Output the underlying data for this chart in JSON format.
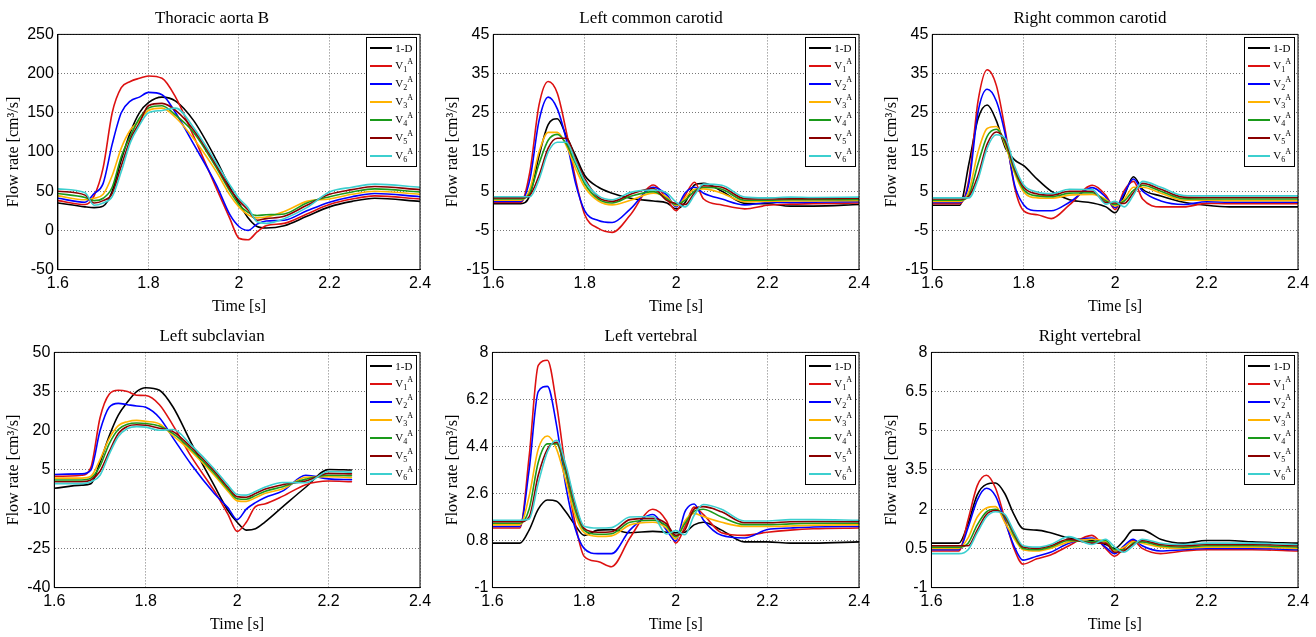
{
  "chart_data": [
    {
      "type": "line",
      "title": "Thoracic aorta B",
      "xlabel": "Time [s]",
      "ylabel": "Flow rate [cm³/s]",
      "xlim": [
        1.6,
        2.4
      ],
      "xticks": [
        1.6,
        1.8,
        2,
        2.2,
        2.4
      ],
      "ylim": [
        -50,
        250
      ],
      "yticks": [
        -50,
        0,
        50,
        100,
        150,
        200,
        250
      ],
      "grid": true,
      "legend": "top right",
      "x": [
        1.6,
        1.66,
        1.68,
        1.7,
        1.72,
        1.74,
        1.76,
        1.78,
        1.8,
        1.83,
        1.86,
        1.9,
        1.95,
        1.98,
        2.0,
        2.02,
        2.04,
        2.06,
        2.1,
        2.15,
        2.2,
        2.25,
        2.3,
        2.4
      ],
      "series": [
        {
          "name": "1-D",
          "color": "#000000",
          "values": [
            35,
            30,
            29,
            31,
            50,
            90,
            125,
            150,
            163,
            170,
            165,
            140,
            90,
            55,
            35,
            16,
            5,
            3,
            6,
            18,
            30,
            37,
            41,
            37
          ]
        },
        {
          "name": "V$_{1}$$^{A}$",
          "color": "#dd1111",
          "values": [
            38,
            33,
            44,
            80,
            150,
            182,
            190,
            194,
            197,
            194,
            170,
            120,
            54,
            15,
            -10,
            -12,
            -2,
            6,
            9,
            21,
            33,
            40,
            44,
            40
          ]
        },
        {
          "name": "V$_{2}$$^{A}$",
          "color": "#0000ff",
          "values": [
            41,
            36,
            47,
            60,
            110,
            150,
            165,
            170,
            176,
            173,
            150,
            110,
            58,
            20,
            5,
            0,
            8,
            12,
            13,
            25,
            36,
            43,
            47,
            43
          ]
        },
        {
          "name": "V$_{3}$$^{A}$",
          "color": "#ffb300",
          "values": [
            44,
            39,
            41,
            46,
            70,
            105,
            128,
            140,
            153,
            156,
            144,
            117,
            75,
            45,
            30,
            20,
            16,
            17,
            24,
            37,
            40,
            46,
            50,
            46
          ]
        },
        {
          "name": "V$_{4}$$^{A}$",
          "color": "#1a9a1a",
          "values": [
            47,
            42,
            38,
            41,
            55,
            94,
            120,
            143,
            156,
            159,
            147,
            125,
            80,
            50,
            33,
            23,
            19,
            20,
            21,
            35,
            43,
            49,
            53,
            49
          ]
        },
        {
          "name": "V$_{5}$$^{A}$",
          "color": "#8b0000",
          "values": [
            50,
            45,
            35,
            38,
            47,
            82,
            116,
            137,
            159,
            162,
            153,
            128,
            83,
            53,
            38,
            26,
            13,
            15,
            18,
            32,
            46,
            52,
            56,
            52
          ]
        },
        {
          "name": "V$_{6}$$^{A}$",
          "color": "#3ccfcf",
          "values": [
            53,
            48,
            32,
            35,
            43,
            75,
            112,
            134,
            150,
            153,
            156,
            131,
            86,
            58,
            41,
            29,
            11,
            9,
            15,
            29,
            49,
            55,
            59,
            55
          ]
        }
      ]
    },
    {
      "type": "line",
      "title": "Left common carotid",
      "xlabel": "Time [s]",
      "ylabel": "Flow rate [cm³/s]",
      "xlim": [
        1.6,
        2.4
      ],
      "xticks": [
        1.6,
        1.8,
        2,
        2.2,
        2.4
      ],
      "ylim": [
        -15,
        45
      ],
      "yticks": [
        -15,
        -5,
        5,
        15,
        25,
        35,
        45
      ],
      "grid": true,
      "legend": "top right",
      "x": [
        1.6,
        1.66,
        1.68,
        1.7,
        1.72,
        1.74,
        1.76,
        1.78,
        1.8,
        1.83,
        1.86,
        1.9,
        1.95,
        1.98,
        2.0,
        2.02,
        2.04,
        2.06,
        2.1,
        2.15,
        2.2,
        2.25,
        2.3,
        2.4
      ],
      "series": [
        {
          "name": "1-D",
          "color": "#000000",
          "values": [
            1.8,
            1.8,
            4,
            14,
            22,
            23.5,
            19,
            14,
            9,
            6,
            4.5,
            3.2,
            2.5,
            2,
            0.5,
            2.2,
            6.6,
            7,
            5,
            1.9,
            1.8,
            1.2,
            1.2,
            1.6
          ]
        },
        {
          "name": "V$_{1}$$^{A}$",
          "color": "#dd1111",
          "values": [
            2.1,
            2.1,
            10,
            27,
            33,
            30,
            20,
            8,
            -1,
            -4.5,
            -5.5,
            -1,
            6.6,
            3,
            0,
            4,
            7.3,
            3,
            1.5,
            0.5,
            1.4,
            1.7,
            1.8,
            2.0
          ]
        },
        {
          "name": "V$_{2}$$^{A}$",
          "color": "#0000ff",
          "values": [
            2.4,
            2.4,
            8,
            23,
            29,
            26,
            18,
            7,
            0,
            -2.5,
            -3,
            0.5,
            6.0,
            4.0,
            1,
            4.6,
            6.0,
            4.5,
            3,
            1.5,
            2.1,
            2.1,
            2.2,
            2.3
          ]
        },
        {
          "name": "V$_{3}$$^{A}$",
          "color": "#ffb300",
          "values": [
            2.7,
            2.7,
            5.5,
            15,
            20,
            20,
            16.5,
            10.8,
            6,
            2.5,
            1.5,
            2.7,
            4.5,
            3.5,
            1.3,
            3.3,
            5.5,
            5.6,
            4.5,
            2.3,
            2.4,
            2.5,
            2.5,
            2.6
          ]
        },
        {
          "name": "V$_{4}$$^{A}$",
          "color": "#1a9a1a",
          "values": [
            3.0,
            3.0,
            4.6,
            12,
            18,
            19.5,
            17,
            12,
            6.9,
            3,
            2,
            3.7,
            4.9,
            3.0,
            1.6,
            2.7,
            5,
            6.0,
            5.5,
            2.7,
            2.7,
            2.8,
            2.8,
            2.9
          ]
        },
        {
          "name": "V$_{5}$$^{A}$",
          "color": "#8b0000",
          "values": [
            3.3,
            3.3,
            4.0,
            9,
            16,
            18.5,
            18.5,
            13.2,
            8.2,
            3.4,
            2.4,
            4.2,
            5.7,
            2.6,
            1.9,
            1.6,
            4.5,
            6.4,
            6,
            3.1,
            3.0,
            3.1,
            3.1,
            3.2
          ]
        },
        {
          "name": "V$_{6}$$^{A}$",
          "color": "#3ccfcf",
          "values": [
            3.6,
            3.6,
            3.6,
            8,
            15,
            17.5,
            17.5,
            12.6,
            7.6,
            3.8,
            2.8,
            4.7,
            5.3,
            4.5,
            2.2,
            1.0,
            4,
            6.8,
            6.5,
            3.5,
            3.3,
            3.5,
            3.4,
            3.5
          ]
        }
      ]
    },
    {
      "type": "line",
      "title": "Right common carotid",
      "xlabel": "Time [s]",
      "ylabel": "Flow rate [cm³/s]",
      "xlim": [
        1.6,
        2.4
      ],
      "xticks": [
        1.6,
        1.8,
        2,
        2.2,
        2.4
      ],
      "ylim": [
        -15,
        45
      ],
      "yticks": [
        -15,
        -5,
        5,
        15,
        25,
        35,
        45
      ],
      "grid": true,
      "legend": "top right",
      "x": [
        1.6,
        1.66,
        1.68,
        1.7,
        1.72,
        1.74,
        1.76,
        1.78,
        1.8,
        1.83,
        1.86,
        1.9,
        1.95,
        1.98,
        2.0,
        2.02,
        2.04,
        2.06,
        2.1,
        2.15,
        2.2,
        2.25,
        2.3,
        2.4
      ],
      "series": [
        {
          "name": "1-D",
          "color": "#000000",
          "values": [
            1.4,
            1.4,
            12,
            23.5,
            27,
            23,
            16,
            13,
            11.5,
            8,
            5.0,
            2.8,
            2,
            1,
            -0.5,
            4,
            8.7,
            5.5,
            3.8,
            2.2,
            1.4,
            1.0,
            1.0,
            1.0
          ]
        },
        {
          "name": "V$_{1}$$^{A}$",
          "color": "#dd1111",
          "values": [
            1.8,
            1.8,
            8,
            28,
            36,
            32,
            20.2,
            6,
            0,
            -1,
            -2,
            1.5,
            6.5,
            3.9,
            0.3,
            5.2,
            7.5,
            3,
            1,
            1.0,
            1.9,
            1.8,
            1.8,
            1.8
          ]
        },
        {
          "name": "V$_{2}$$^{A}$",
          "color": "#0000ff",
          "values": [
            2.1,
            2.1,
            7,
            25.2,
            31,
            28,
            19.2,
            6.6,
            1.5,
            0,
            0,
            2.2,
            5.9,
            3.4,
            0.8,
            4.5,
            8.1,
            5,
            2.5,
            1.6,
            2.3,
            2.2,
            2.2,
            2.2
          ]
        },
        {
          "name": "V$_{3}$$^{A}$",
          "color": "#ffb300",
          "values": [
            2.4,
            2.4,
            5,
            15,
            21,
            21.5,
            16.6,
            9.6,
            4.8,
            3.3,
            3.2,
            4.0,
            4.2,
            2.9,
            1.2,
            3.0,
            6,
            6,
            4.5,
            2.7,
            2.7,
            2.6,
            2.6,
            2.6
          ]
        },
        {
          "name": "V$_{4}$$^{A}$",
          "color": "#1a9a1a",
          "values": [
            2.7,
            2.7,
            4,
            12,
            19,
            20.8,
            17.2,
            10.2,
            5.4,
            3.8,
            3.6,
            4.5,
            4.6,
            2.5,
            1.6,
            2.5,
            5.2,
            6.5,
            5,
            3.1,
            3.0,
            3.0,
            3.0,
            3.0
          ]
        },
        {
          "name": "V$_{5}$$^{A}$",
          "color": "#8b0000",
          "values": [
            3.0,
            3.0,
            3.7,
            9,
            17,
            20.1,
            17.8,
            10.8,
            6.0,
            4.3,
            4.0,
            5.0,
            5.0,
            2.1,
            2.0,
            1.9,
            4.6,
            7.0,
            5.5,
            3.5,
            3.4,
            3.4,
            3.4,
            3.4
          ]
        },
        {
          "name": "V$_{6}$$^{A}$",
          "color": "#3ccfcf",
          "values": [
            3.3,
            3.3,
            3.3,
            8,
            16,
            19.4,
            18.4,
            11.4,
            6.6,
            4.8,
            4.4,
            5.5,
            5.4,
            1.7,
            2.4,
            1.0,
            4.0,
            7.5,
            6,
            3.9,
            3.8,
            3.8,
            3.8,
            3.8
          ]
        }
      ]
    },
    {
      "type": "line",
      "title": "Left subclavian",
      "xlabel": "Time [s]",
      "ylabel": "Flow rate [cm³/s]",
      "xlim": [
        1.6,
        2.4
      ],
      "xticks": [
        1.6,
        1.8,
        2,
        2.2,
        2.4
      ],
      "ylim": [
        -40,
        50
      ],
      "yticks": [
        -40,
        -25,
        -10,
        5,
        20,
        35,
        50
      ],
      "grid": true,
      "legend": "top right",
      "x": [
        1.6,
        1.66,
        1.68,
        1.7,
        1.72,
        1.74,
        1.76,
        1.78,
        1.8,
        1.83,
        1.86,
        1.9,
        1.95,
        1.98,
        2.0,
        2.02,
        2.04,
        2.06,
        2.1,
        2.15,
        2.2,
        2.25
      ],
      "series": [
        {
          "name": "1-D",
          "color": "#000000",
          "values": [
            -2,
            -0.8,
            -0.3,
            8,
            18,
            26,
            31,
            35,
            36.5,
            35.5,
            29,
            15.2,
            -1,
            -10.5,
            -15,
            -18,
            -17.5,
            -15,
            -9,
            -1.6,
            5.2,
            5.0
          ]
        },
        {
          "name": "V$_{1}$$^{A}$",
          "color": "#dd1111",
          "values": [
            2.6,
            3.0,
            6,
            25,
            34,
            35.5,
            35,
            33.6,
            33.5,
            30,
            22,
            10,
            -3,
            -12,
            -18.5,
            -15,
            -9,
            -8,
            -5,
            -0.6,
            0.8,
            0.5
          ]
        },
        {
          "name": "V$_{2}$$^{A}$",
          "color": "#0000ff",
          "values": [
            3.3,
            3.5,
            5,
            20,
            29,
            30.5,
            30,
            29.5,
            29,
            25,
            17.2,
            7,
            -4,
            -9.5,
            -14,
            -10,
            -7.5,
            -5.6,
            -3.0,
            3.0,
            1.6,
            1.3
          ]
        },
        {
          "name": "V$_{3}$$^{A}$",
          "color": "#ffb300",
          "values": [
            1.9,
            1.9,
            2.6,
            9,
            17,
            22,
            23.5,
            24,
            23.6,
            22.6,
            18.1,
            12,
            3,
            -3.2,
            -6.8,
            -7.0,
            -5.6,
            -4.0,
            -2.2,
            2.2,
            2.4,
            2.1
          ]
        },
        {
          "name": "V$_{4}$$^{A}$",
          "color": "#1a9a1a",
          "values": [
            1.2,
            1.2,
            1.9,
            6.5,
            15,
            20.5,
            22.5,
            23,
            22.8,
            21.8,
            18.9,
            12.8,
            3.8,
            -2.4,
            -6.0,
            -6.2,
            -4.8,
            -3.2,
            -1.4,
            1.5,
            3.0,
            2.8
          ]
        },
        {
          "name": "V$_{5}$$^{A}$",
          "color": "#8b0000",
          "values": [
            0.5,
            0.5,
            1.2,
            4.5,
            12,
            19,
            21.7,
            22.3,
            22.1,
            21.0,
            19.7,
            13.6,
            4.6,
            -1.6,
            -5.2,
            -5.4,
            -4.0,
            -2.4,
            -0.6,
            0.8,
            3.7,
            3.5
          ]
        },
        {
          "name": "V$_{6}$$^{A}$",
          "color": "#3ccfcf",
          "values": [
            -0.2,
            -0.2,
            0.5,
            3,
            11,
            17.8,
            20.9,
            21.6,
            21.4,
            20.2,
            20.5,
            14.4,
            5.4,
            -0.8,
            -4.4,
            -4.6,
            -3.2,
            -1.6,
            0.2,
            0.1,
            4.4,
            4.2
          ]
        }
      ]
    },
    {
      "type": "line",
      "title": "Left vertebral",
      "xlabel": "Time [s]",
      "ylabel": "Flow rate [cm³/s]",
      "xlim": [
        1.6,
        2.4
      ],
      "xticks": [
        1.6,
        1.8,
        2,
        2.2,
        2.4
      ],
      "ylim": [
        -1,
        8
      ],
      "yticks": [
        -1,
        0.8,
        2.6,
        4.4,
        6.2,
        8
      ],
      "grid": true,
      "legend": "top right",
      "x": [
        1.6,
        1.66,
        1.68,
        1.7,
        1.72,
        1.74,
        1.76,
        1.78,
        1.8,
        1.83,
        1.86,
        1.9,
        1.95,
        1.98,
        2.0,
        2.02,
        2.04,
        2.06,
        2.1,
        2.15,
        2.2,
        2.25,
        2.3,
        2.4
      ],
      "series": [
        {
          "name": "1-D",
          "color": "#000000",
          "values": [
            0.7,
            0.7,
            1.2,
            2.0,
            2.35,
            2.3,
            1.9,
            1.4,
            1.0,
            1.2,
            1.22,
            1.1,
            1.15,
            1.12,
            1.1,
            1.12,
            1.4,
            1.5,
            1.2,
            0.75,
            0.75,
            0.7,
            0.7,
            0.75
          ]
        },
        {
          "name": "V$_{1}$$^{A}$",
          "color": "#dd1111",
          "values": [
            1.28,
            1.28,
            4,
            7.5,
            7.7,
            6,
            3.5,
            1.5,
            0.2,
            0,
            -0.2,
            0.9,
            2.0,
            1.55,
            0.7,
            1.32,
            2.08,
            1.8,
            1.1,
            1.0,
            1.12,
            1.2,
            1.25,
            1.28
          ]
        },
        {
          "name": "V$_{2}$$^{A}$",
          "color": "#0000ff",
          "values": [
            1.34,
            1.34,
            3.5,
            6.5,
            6.7,
            5.2,
            2.9,
            1.3,
            0.5,
            0.3,
            0.3,
            1.2,
            1.8,
            1.2,
            0.78,
            1.9,
            2.2,
            1.6,
            1.0,
            0.9,
            1.22,
            1.28,
            1.32,
            1.34
          ]
        },
        {
          "name": "V$_{3}$$^{A}$",
          "color": "#ffb300",
          "values": [
            1.4,
            1.4,
            2.5,
            4.3,
            4.8,
            4.3,
            3.1,
            1.8,
            1.1,
            0.96,
            0.98,
            1.4,
            1.5,
            1.28,
            0.86,
            1.55,
            1.84,
            1.72,
            1.5,
            1.34,
            1.34,
            1.36,
            1.39,
            1.4
          ]
        },
        {
          "name": "V$_{4}$$^{A}$",
          "color": "#1a9a1a",
          "values": [
            1.46,
            1.46,
            2,
            3.8,
            4.5,
            4.5,
            3.4,
            2,
            1.2,
            1.04,
            1.06,
            1.5,
            1.58,
            1.36,
            0.94,
            1.45,
            1.92,
            2.0,
            1.7,
            1.41,
            1.41,
            1.44,
            1.46,
            1.46
          ]
        },
        {
          "name": "V$_{5}$$^{A}$",
          "color": "#8b0000",
          "values": [
            1.52,
            1.52,
            1.7,
            3.3,
            4.3,
            4.56,
            3.6,
            2.2,
            1.27,
            1.12,
            1.14,
            1.6,
            1.65,
            1.44,
            1.0,
            1.2,
            2.0,
            2.1,
            1.9,
            1.48,
            1.48,
            1.52,
            1.53,
            1.52
          ]
        },
        {
          "name": "V$_{6}$$^{A}$",
          "color": "#3ccfcf",
          "values": [
            1.58,
            1.58,
            1.62,
            3,
            4.2,
            4.64,
            3.7,
            2.3,
            1.35,
            1.28,
            1.3,
            1.7,
            1.72,
            1.05,
            1.18,
            1.02,
            1.76,
            2.18,
            2.0,
            1.55,
            1.55,
            1.6,
            1.6,
            1.58
          ]
        }
      ]
    },
    {
      "type": "line",
      "title": "Right vertebral",
      "xlabel": "Time [s]",
      "ylabel": "Flow rate [cm³/s]",
      "xlim": [
        1.6,
        2.4
      ],
      "xticks": [
        1.6,
        1.8,
        2,
        2.2,
        2.4
      ],
      "ylim": [
        -1,
        8
      ],
      "yticks": [
        -1,
        0.5,
        2,
        3.5,
        5,
        6.5,
        8
      ],
      "grid": true,
      "legend": "top right",
      "x": [
        1.6,
        1.66,
        1.68,
        1.7,
        1.72,
        1.74,
        1.76,
        1.78,
        1.8,
        1.83,
        1.86,
        1.9,
        1.95,
        1.98,
        2.0,
        2.02,
        2.04,
        2.06,
        2.1,
        2.15,
        2.2,
        2.25,
        2.3,
        2.4
      ],
      "series": [
        {
          "name": "1-D",
          "color": "#000000",
          "values": [
            0.7,
            0.7,
            1.45,
            2.55,
            2.95,
            3.0,
            2.6,
            1.8,
            1.25,
            1.2,
            1.1,
            0.9,
            0.8,
            0.65,
            0.5,
            0.8,
            1.2,
            1.2,
            0.85,
            0.7,
            0.8,
            0.8,
            0.75,
            0.7
          ]
        },
        {
          "name": "V$_{1}$$^{A}$",
          "color": "#dd1111",
          "values": [
            0.4,
            0.4,
            1.6,
            2.9,
            3.3,
            2.8,
            1.65,
            0.5,
            -0.1,
            0.1,
            0.25,
            0.6,
            1.0,
            0.5,
            0.2,
            0.5,
            0.8,
            0.5,
            0.3,
            0.4,
            0.45,
            0.45,
            0.45,
            0.4
          ]
        },
        {
          "name": "V$_{2}$$^{A}$",
          "color": "#0000ff",
          "values": [
            0.45,
            0.45,
            1.3,
            2.35,
            2.8,
            2.5,
            1.55,
            0.6,
            0.05,
            0.2,
            0.35,
            0.7,
            0.9,
            0.55,
            0.3,
            0.6,
            0.85,
            0.6,
            0.4,
            0.45,
            0.5,
            0.5,
            0.5,
            0.45
          ]
        },
        {
          "name": "V$_{3}$$^{A}$",
          "color": "#ffb300",
          "values": [
            0.5,
            0.5,
            0.9,
            1.7,
            2.05,
            2.1,
            1.5,
            0.9,
            0.45,
            0.4,
            0.5,
            0.75,
            0.85,
            0.75,
            0.4,
            0.55,
            0.75,
            0.7,
            0.55,
            0.5,
            0.55,
            0.55,
            0.55,
            0.5
          ]
        },
        {
          "name": "V$_{4}$$^{A}$",
          "color": "#1a9a1a",
          "values": [
            0.55,
            0.55,
            0.7,
            1.4,
            1.9,
            2.0,
            1.7,
            1.0,
            0.5,
            0.45,
            0.55,
            0.8,
            0.75,
            0.8,
            0.45,
            0.45,
            0.7,
            0.75,
            0.6,
            0.55,
            0.6,
            0.6,
            0.6,
            0.55
          ]
        },
        {
          "name": "V$_{5}$$^{A}$",
          "color": "#8b0000",
          "values": [
            0.6,
            0.6,
            0.6,
            1.2,
            1.8,
            1.95,
            1.75,
            1.1,
            0.55,
            0.5,
            0.6,
            0.85,
            0.7,
            0.7,
            0.35,
            0.4,
            0.65,
            0.8,
            0.65,
            0.6,
            0.65,
            0.65,
            0.65,
            0.6
          ]
        },
        {
          "name": "V$_{6}$$^{A}$",
          "color": "#3ccfcf",
          "values": [
            0.3,
            0.3,
            0.45,
            1.1,
            1.7,
            1.9,
            1.8,
            1.15,
            0.6,
            0.55,
            0.65,
            0.95,
            0.65,
            0.85,
            0.55,
            0.35,
            0.6,
            0.85,
            0.7,
            0.65,
            0.7,
            0.7,
            0.7,
            0.65
          ]
        }
      ]
    }
  ]
}
